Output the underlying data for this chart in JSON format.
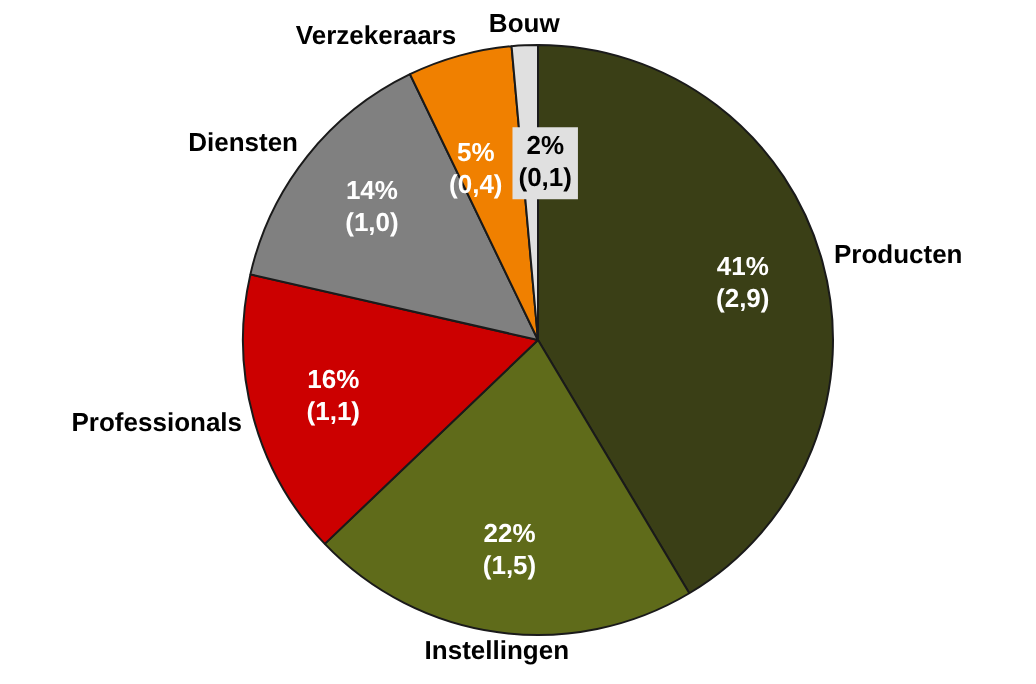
{
  "chart_data": {
    "type": "pie",
    "categories": [
      "Producten",
      "Instellingen",
      "Professionals",
      "Diensten",
      "Verzekeraars",
      "Bouw"
    ],
    "values": [
      2.9,
      1.5,
      1.1,
      1.0,
      0.4,
      0.1
    ],
    "value_labels": [
      "41%\n(2,9)",
      "22%\n(1,5)",
      "16%\n(1,1)",
      "14%\n(1,0)",
      "5%\n(0,4)",
      "2%\n(0,1)"
    ],
    "colors": [
      "#3a3f16",
      "#5f6b1a",
      "#cc0000",
      "#808080",
      "#f08000",
      "#e0e0e0"
    ],
    "legend": false
  }
}
